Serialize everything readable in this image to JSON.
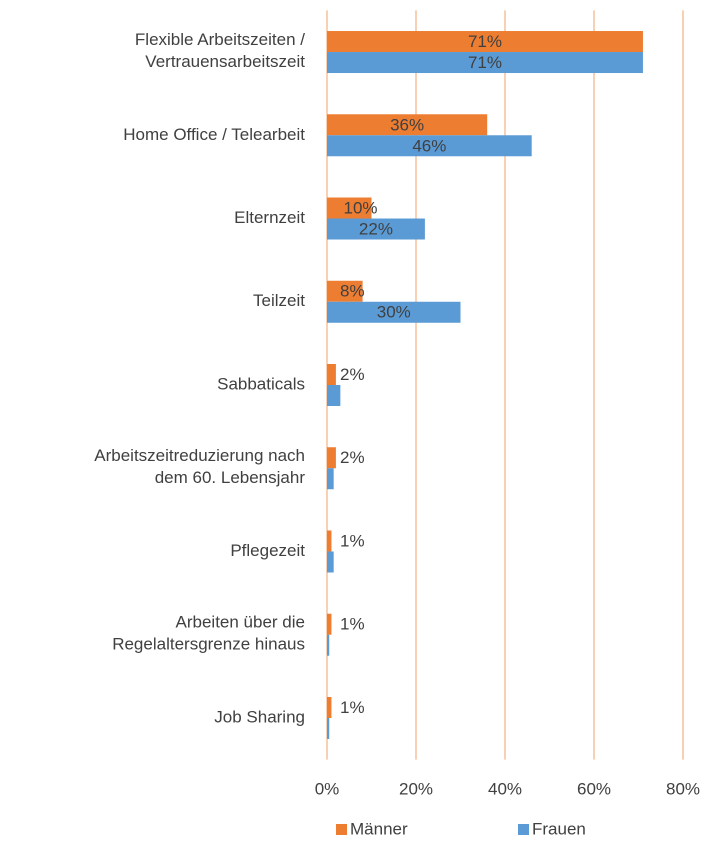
{
  "chart_data": {
    "type": "hbar",
    "categories": [
      "Flexible Arbeitszeiten /\nVertrauensarbeitszeit",
      "Home Office / Telearbeit",
      "Elternzeit",
      "Teilzeit",
      "Sabbaticals",
      "Arbeitszeitreduzierung nach\ndem 60. Lebensjahr",
      "Pflegezeit",
      "Arbeiten über die\nRegelaltersgrenze hinaus",
      "Job Sharing"
    ],
    "series": [
      {
        "name": "Männer",
        "color": "#ED7D31",
        "values": [
          71,
          36,
          10,
          8,
          2,
          2,
          1,
          1,
          1
        ],
        "value_labels": [
          "71%",
          "36%",
          "10%",
          "8%",
          "2%",
          "2%",
          "1%",
          "1%",
          "1%"
        ]
      },
      {
        "name": "Frauen",
        "color": "#5B9BD5",
        "values": [
          71,
          46,
          22,
          30,
          3,
          1.5,
          1.5,
          0.5,
          0.5
        ],
        "value_labels": [
          "71%",
          "46%",
          "22%",
          "30%",
          null,
          null,
          null,
          null,
          null
        ]
      }
    ],
    "xlim": [
      0,
      80
    ],
    "xticks": [
      {
        "value": 0,
        "label": "0%"
      },
      {
        "value": 20,
        "label": "20%"
      },
      {
        "value": 40,
        "label": "40%"
      },
      {
        "value": 60,
        "label": "60%"
      },
      {
        "value": 80,
        "label": "80%"
      }
    ],
    "grid": true,
    "grid_color": "#F4B183",
    "legend": "bottom"
  }
}
